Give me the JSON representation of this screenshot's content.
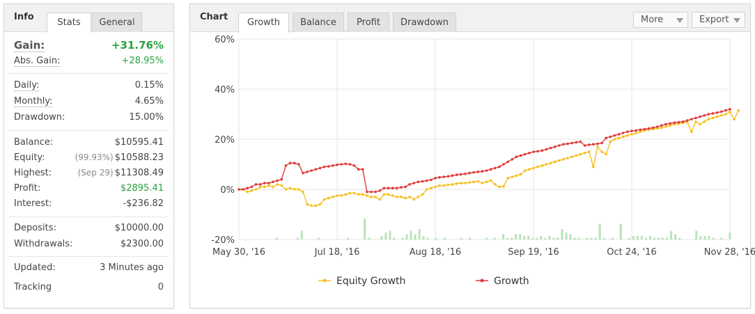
{
  "info": {
    "title": "Info",
    "tabs": [
      "Stats",
      "General"
    ],
    "gain": {
      "label": "Gain:",
      "value": "+31.76%"
    },
    "abs_gain": {
      "label": "Abs. Gain:",
      "value": "+28.95%"
    },
    "daily": {
      "label": "Daily:",
      "value": "0.15%"
    },
    "monthly": {
      "label": "Monthly:",
      "value": "4.65%"
    },
    "drawdown": {
      "label": "Drawdown:",
      "value": "15.00%"
    },
    "balance": {
      "label": "Balance:",
      "value": "$10595.41"
    },
    "equity": {
      "label": "Equity:",
      "sub": "(99.93%)",
      "value": "$10588.23"
    },
    "highest": {
      "label": "Highest:",
      "sub": "(Sep 29)",
      "value": "$11308.49"
    },
    "profit": {
      "label": "Profit:",
      "value": "$2895.41"
    },
    "interest": {
      "label": "Interest:",
      "value": "-$236.82"
    },
    "deposits": {
      "label": "Deposits:",
      "value": "$10000.00"
    },
    "withdrawals": {
      "label": "Withdrawals:",
      "value": "$2300.00"
    },
    "updated": {
      "label": "Updated:",
      "value": "3 Minutes ago"
    },
    "tracking": {
      "label": "Tracking",
      "value": "0"
    }
  },
  "chart_panel": {
    "title": "Chart",
    "tabs": [
      "Growth",
      "Balance",
      "Profit",
      "Drawdown"
    ],
    "more_label": "More",
    "export_label": "Export"
  },
  "colors": {
    "growth": "#e03a3a",
    "equity": "#f5c020",
    "bars": "#b7e3b7",
    "positive": "#29a33d"
  },
  "chart_data": {
    "type": "line",
    "title": "",
    "x_tick_labels": [
      "May 30, '16",
      "Jul 18, '16",
      "Aug 18, '16",
      "Sep 19, '16",
      "Oct 24, '16",
      "Nov 28, '16"
    ],
    "y_tick_labels": [
      "60%",
      "40%",
      "20%",
      "0%",
      "-20%"
    ],
    "ylim": [
      -20,
      60
    ],
    "grid": true,
    "legend_position": "bottom",
    "series": [
      {
        "name": "Growth",
        "color": "#e03a3a",
        "values": [
          0,
          0,
          0.5,
          1,
          2,
          2,
          2.5,
          2.5,
          3,
          3.5,
          4,
          9.5,
          10.5,
          10.5,
          10,
          6.5,
          7,
          7.5,
          8,
          8.5,
          9,
          9.2,
          9.5,
          9.8,
          10,
          10.2,
          10,
          9.5,
          8,
          8,
          -1,
          -1,
          -1,
          -0.5,
          0.5,
          0.5,
          0.5,
          0.5,
          0.8,
          1,
          2,
          2.5,
          3,
          3.2,
          3.5,
          3.8,
          4.5,
          4.8,
          5,
          5.2,
          5.5,
          5.8,
          6,
          6.2,
          6.5,
          6.8,
          7,
          7.2,
          7.5,
          8,
          8.5,
          9,
          10,
          11,
          12,
          13,
          13.5,
          14,
          14.5,
          15,
          15.2,
          15.5,
          16,
          16.5,
          17,
          17.5,
          18,
          18.2,
          18.5,
          18.8,
          19,
          17.5,
          17.8,
          18,
          18.2,
          18.5,
          20.5,
          21,
          21.5,
          22,
          22.5,
          23,
          23.3,
          23.5,
          23.8,
          24,
          24.3,
          24.6,
          25,
          25.5,
          26,
          26.3,
          26.6,
          26.8,
          27,
          27.5,
          28,
          28.5,
          29,
          29.5,
          30,
          30.3,
          30.6,
          31,
          31.5,
          32
        ]
      },
      {
        "name": "Equity Growth",
        "color": "#f5c020",
        "values": [
          0,
          0,
          -1,
          -0.5,
          0,
          1,
          1,
          1.5,
          1,
          2,
          1.5,
          0,
          0.5,
          0,
          0,
          -1,
          -6,
          -6.5,
          -6.5,
          -6,
          -4,
          -3.5,
          -3,
          -2.5,
          -2.5,
          -2,
          -1.5,
          -1.5,
          -2,
          -2,
          -2.5,
          -3,
          -3,
          -4,
          -2,
          -2,
          -2.5,
          -3,
          -3,
          -3.5,
          -3,
          -4,
          -3,
          -2,
          0,
          0.5,
          1,
          1.5,
          1.5,
          1.8,
          2,
          2.3,
          2.5,
          2.5,
          2.8,
          3,
          3.2,
          2.5,
          3,
          3.5,
          2,
          1,
          1.2,
          4.5,
          5,
          5.5,
          6,
          7.5,
          8,
          8.5,
          9,
          9.5,
          10,
          10.5,
          11,
          11.5,
          12,
          12.5,
          13,
          13.5,
          14,
          14.5,
          15,
          9,
          17,
          15,
          14,
          19,
          20,
          20.5,
          21,
          21.5,
          22,
          22.5,
          23,
          23.5,
          23.8,
          24,
          24.3,
          24.6,
          25,
          25.5,
          26,
          26.2,
          26.5,
          27,
          23,
          27,
          26,
          27,
          28,
          28.5,
          29,
          29.5,
          30,
          31,
          28,
          31.5
        ]
      }
    ],
    "volume_bars": [
      0,
      0,
      0,
      0,
      0,
      0,
      0,
      0,
      0,
      1,
      0,
      0,
      0,
      0,
      1,
      5,
      0,
      0,
      0,
      1,
      0,
      0,
      0,
      0,
      0,
      0,
      1,
      0,
      0,
      0,
      12,
      1,
      0,
      0,
      2,
      4,
      5,
      1,
      0,
      1,
      3,
      5,
      3,
      6,
      2,
      1,
      0,
      1,
      0,
      1,
      0,
      0,
      0,
      1,
      0,
      1,
      0,
      0,
      0,
      1,
      0,
      1,
      0,
      3,
      1,
      1,
      3,
      3,
      2,
      2,
      1,
      1,
      2,
      1,
      2,
      1,
      1,
      6,
      4,
      3,
      1,
      1,
      0,
      1,
      1,
      1,
      9,
      1,
      0,
      1,
      0,
      9,
      0,
      1,
      2,
      2,
      2,
      1,
      2,
      1,
      1,
      1,
      1,
      5,
      3,
      1,
      0,
      0,
      0,
      5,
      2,
      2,
      2,
      1,
      0,
      1,
      0,
      4
    ]
  }
}
